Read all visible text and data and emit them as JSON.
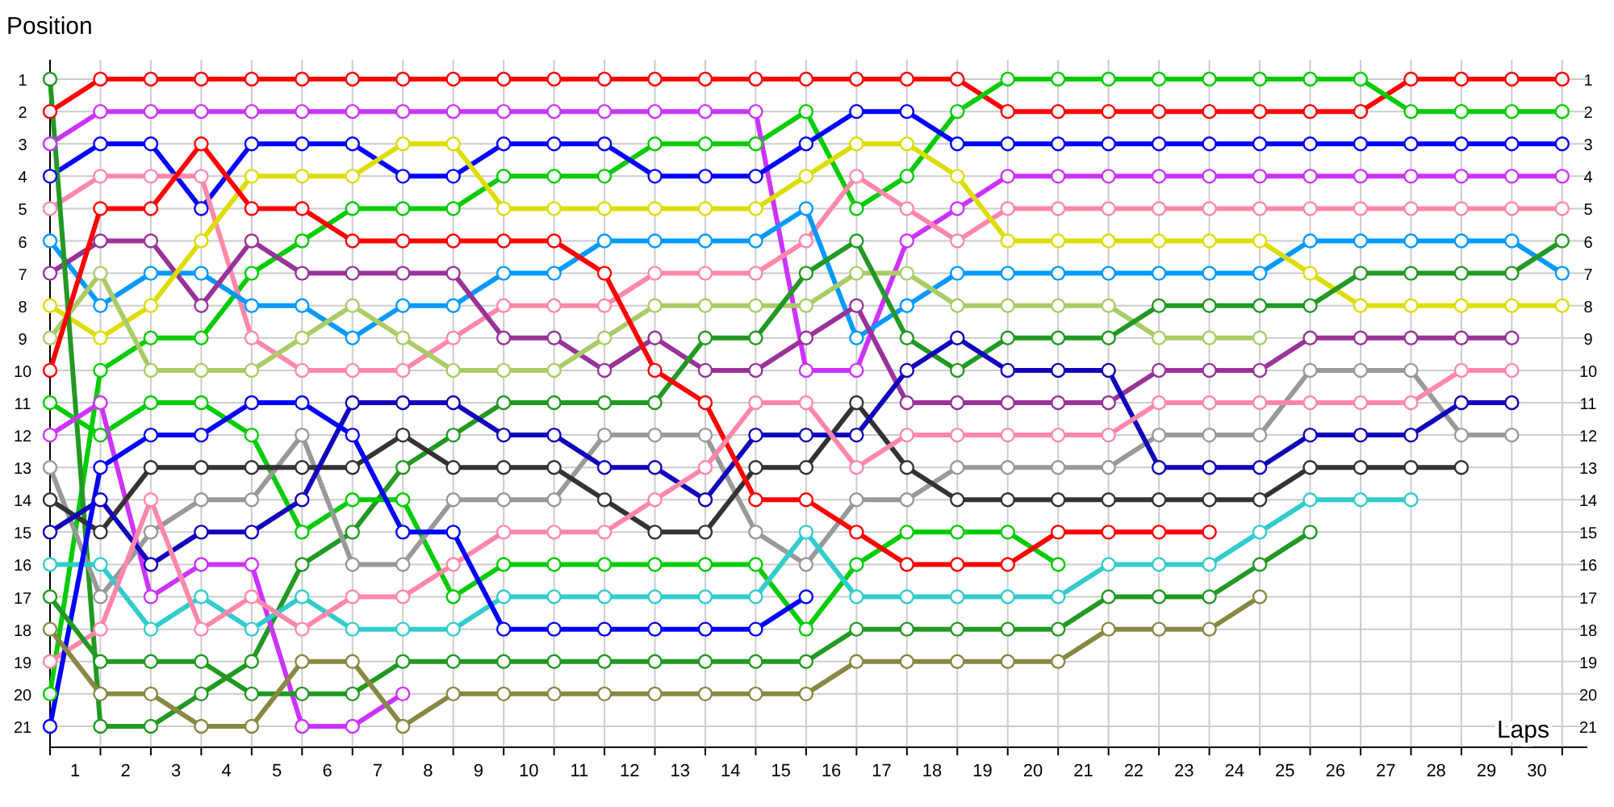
{
  "chart_data": {
    "type": "line",
    "xlabel": "Laps",
    "ylabel": "Position",
    "grid": true,
    "marker": "circle",
    "line_style": "solid",
    "x": [
      0,
      1,
      2,
      3,
      4,
      5,
      6,
      7,
      8,
      9,
      10,
      11,
      12,
      13,
      14,
      15,
      16,
      17,
      18,
      19,
      20,
      21,
      22,
      23,
      24,
      25,
      26,
      27,
      28,
      29,
      30
    ],
    "xlim": [
      0,
      30.5
    ],
    "ylim": [
      21.65,
      0.4
    ],
    "y2lim": [
      21.65,
      0.4
    ],
    "xticks": [
      {
        "value": 0,
        "label": null
      },
      {
        "value": 0.5,
        "label": "1"
      },
      {
        "value": 1,
        "label": null
      },
      {
        "value": 1.5,
        "label": "2"
      },
      {
        "value": 2,
        "label": null
      },
      {
        "value": 2.5,
        "label": "3"
      },
      {
        "value": 3,
        "label": null
      },
      {
        "value": 3.5,
        "label": "4"
      },
      {
        "value": 4,
        "label": null
      },
      {
        "value": 4.5,
        "label": "5"
      },
      {
        "value": 5,
        "label": null
      },
      {
        "value": 5.5,
        "label": "6"
      },
      {
        "value": 6,
        "label": null
      },
      {
        "value": 6.5,
        "label": "7"
      },
      {
        "value": 7,
        "label": null
      },
      {
        "value": 7.5,
        "label": "8"
      },
      {
        "value": 8,
        "label": null
      },
      {
        "value": 8.5,
        "label": "9"
      },
      {
        "value": 9,
        "label": null
      },
      {
        "value": 9.5,
        "label": "10"
      },
      {
        "value": 10,
        "label": null
      },
      {
        "value": 10.5,
        "label": "11"
      },
      {
        "value": 11,
        "label": null
      },
      {
        "value": 11.5,
        "label": "12"
      },
      {
        "value": 12,
        "label": null
      },
      {
        "value": 12.5,
        "label": "13"
      },
      {
        "value": 13,
        "label": null
      },
      {
        "value": 13.5,
        "label": "14"
      },
      {
        "value": 14,
        "label": null
      },
      {
        "value": 14.5,
        "label": "15"
      },
      {
        "value": 15,
        "label": null
      },
      {
        "value": 15.5,
        "label": "16"
      },
      {
        "value": 16,
        "label": null
      },
      {
        "value": 16.5,
        "label": "17"
      },
      {
        "value": 17,
        "label": null
      },
      {
        "value": 17.5,
        "label": "18"
      },
      {
        "value": 18,
        "label": null
      },
      {
        "value": 18.5,
        "label": "19"
      },
      {
        "value": 19,
        "label": null
      },
      {
        "value": 19.5,
        "label": "20"
      },
      {
        "value": 20,
        "label": null
      },
      {
        "value": 20.5,
        "label": "21"
      },
      {
        "value": 21,
        "label": null
      },
      {
        "value": 21.5,
        "label": "22"
      },
      {
        "value": 22,
        "label": null
      },
      {
        "value": 22.5,
        "label": "23"
      },
      {
        "value": 23,
        "label": null
      },
      {
        "value": 23.5,
        "label": "24"
      },
      {
        "value": 24,
        "label": null
      },
      {
        "value": 24.5,
        "label": "25"
      },
      {
        "value": 25,
        "label": null
      },
      {
        "value": 25.5,
        "label": "26"
      },
      {
        "value": 26,
        "label": null
      },
      {
        "value": 26.5,
        "label": "27"
      },
      {
        "value": 27,
        "label": null
      },
      {
        "value": 27.5,
        "label": "28"
      },
      {
        "value": 28,
        "label": null
      },
      {
        "value": 28.5,
        "label": "29"
      },
      {
        "value": 29,
        "label": null
      },
      {
        "value": 29.5,
        "label": "30"
      },
      {
        "value": 30,
        "label": null
      }
    ],
    "yticks": [
      1,
      2,
      3,
      4,
      5,
      6,
      7,
      8,
      9,
      10,
      11,
      12,
      13,
      14,
      15,
      16,
      17,
      18,
      19,
      20,
      21
    ],
    "y2ticks": [
      1,
      2,
      3,
      4,
      5,
      6,
      7,
      8,
      9,
      10,
      11,
      12,
      13,
      14,
      15,
      16,
      17,
      18,
      19,
      20,
      21
    ],
    "series": [
      {
        "color": "#ff0000",
        "values": [
          2,
          1,
          1,
          1,
          1,
          1,
          1,
          1,
          1,
          1,
          1,
          1,
          1,
          1,
          1,
          1,
          1,
          1,
          1,
          2,
          2,
          2,
          2,
          2,
          2,
          2,
          2,
          1,
          1,
          1,
          1
        ]
      },
      {
        "color": "#00cc00",
        "values": [
          20,
          10,
          9,
          9,
          7,
          6,
          5,
          5,
          5,
          4,
          4,
          4,
          3,
          3,
          3,
          2,
          5,
          4,
          2,
          1,
          1,
          1,
          1,
          1,
          1,
          1,
          1,
          2,
          2,
          2,
          2
        ]
      },
      {
        "color": "#cc33ff",
        "values": [
          3,
          2,
          2,
          2,
          2,
          2,
          2,
          2,
          2,
          2,
          2,
          2,
          2,
          2,
          2,
          10,
          10,
          6,
          5,
          4,
          4,
          4,
          4,
          4,
          4,
          4,
          4,
          4,
          4,
          4,
          4
        ]
      },
      {
        "color": "#0000ff",
        "values": [
          4,
          3,
          3,
          5,
          3,
          3,
          3,
          4,
          4,
          3,
          3,
          3,
          4,
          4,
          4,
          3,
          2,
          2,
          3,
          3,
          3,
          3,
          3,
          3,
          3,
          3,
          3,
          3,
          3,
          3,
          3
        ]
      },
      {
        "color": "#ff88aa",
        "values": [
          5,
          4,
          4,
          4,
          9,
          10,
          10,
          10,
          9,
          8,
          8,
          8,
          7,
          7,
          7,
          6,
          4,
          5,
          6,
          5,
          5,
          5,
          5,
          5,
          5,
          5,
          5,
          5,
          5,
          5,
          5
        ]
      },
      {
        "color": "#0099ff",
        "values": [
          6,
          8,
          7,
          7,
          8,
          8,
          9,
          8,
          8,
          7,
          7,
          6,
          6,
          6,
          6,
          5,
          9,
          8,
          7,
          7,
          7,
          7,
          7,
          7,
          7,
          6,
          6,
          6,
          6,
          6,
          7
        ]
      },
      {
        "color": "#993399",
        "values": [
          7,
          6,
          6,
          8,
          6,
          7,
          7,
          7,
          7,
          9,
          9,
          10,
          9,
          10,
          10,
          9,
          8,
          11,
          11,
          11,
          11,
          11,
          10,
          10,
          10,
          9,
          9,
          9,
          9,
          9,
          null
        ]
      },
      {
        "color": "#dddd00",
        "values": [
          8,
          9,
          8,
          6,
          4,
          4,
          4,
          3,
          3,
          5,
          5,
          5,
          5,
          5,
          5,
          4,
          3,
          3,
          4,
          6,
          6,
          6,
          6,
          6,
          6,
          7,
          8,
          8,
          8,
          8,
          8
        ]
      },
      {
        "color": "#aacc66",
        "values": [
          9,
          7,
          10,
          10,
          10,
          9,
          8,
          9,
          10,
          10,
          10,
          9,
          8,
          8,
          8,
          8,
          7,
          7,
          8,
          8,
          8,
          8,
          9,
          9,
          9,
          null,
          null,
          null,
          null,
          null,
          null
        ]
      },
      {
        "color": "#229922",
        "values": [
          1,
          21,
          21,
          20,
          19,
          16,
          15,
          13,
          12,
          11,
          11,
          11,
          11,
          9,
          9,
          7,
          6,
          9,
          10,
          9,
          9,
          9,
          8,
          8,
          8,
          8,
          7,
          7,
          7,
          7,
          6
        ]
      },
      {
        "color": "#00cc00",
        "values": [
          11,
          12,
          11,
          11,
          12,
          15,
          14,
          14,
          17,
          16,
          16,
          16,
          16,
          16,
          16,
          18,
          16,
          15,
          15,
          15,
          16,
          null,
          null,
          null,
          null,
          null,
          null,
          null,
          null,
          null,
          null
        ]
      },
      {
        "color": "#cc33ff",
        "values": [
          12,
          11,
          17,
          16,
          16,
          21,
          21,
          20,
          null,
          null,
          null,
          null,
          null,
          null,
          null,
          null,
          null,
          null,
          null,
          null,
          null,
          null,
          null,
          null,
          null,
          null,
          null,
          null,
          null,
          null,
          null
        ]
      },
      {
        "color": "#999999",
        "values": [
          13,
          17,
          15,
          14,
          14,
          12,
          16,
          16,
          14,
          14,
          14,
          12,
          12,
          12,
          15,
          16,
          14,
          14,
          13,
          13,
          13,
          13,
          12,
          12,
          12,
          10,
          10,
          10,
          12,
          12,
          null
        ]
      },
      {
        "color": "#333333",
        "values": [
          14,
          15,
          13,
          13,
          13,
          13,
          13,
          12,
          13,
          13,
          13,
          14,
          15,
          15,
          13,
          13,
          11,
          13,
          14,
          14,
          14,
          14,
          14,
          14,
          14,
          13,
          13,
          13,
          13,
          null,
          null
        ]
      },
      {
        "color": "#1100bb",
        "values": [
          15,
          14,
          16,
          15,
          15,
          14,
          11,
          11,
          11,
          12,
          12,
          13,
          13,
          14,
          12,
          12,
          12,
          10,
          9,
          10,
          10,
          10,
          13,
          13,
          13,
          12,
          12,
          12,
          11,
          11,
          null
        ]
      },
      {
        "color": "#33cccc",
        "values": [
          16,
          16,
          18,
          17,
          18,
          17,
          18,
          18,
          18,
          17,
          17,
          17,
          17,
          17,
          17,
          15,
          17,
          17,
          17,
          17,
          17,
          16,
          16,
          16,
          15,
          14,
          14,
          14,
          null,
          null,
          null
        ]
      },
      {
        "color": "#ff0000",
        "values": [
          10,
          5,
          5,
          3,
          5,
          5,
          6,
          6,
          6,
          6,
          6,
          7,
          10,
          11,
          14,
          14,
          15,
          16,
          16,
          16,
          15,
          15,
          15,
          15,
          null,
          null,
          null,
          null,
          null,
          null,
          null
        ]
      },
      {
        "color": "#ff88aa",
        "values": [
          19,
          18,
          14,
          18,
          17,
          18,
          17,
          17,
          16,
          15,
          15,
          15,
          14,
          13,
          11,
          11,
          13,
          12,
          12,
          12,
          12,
          12,
          11,
          11,
          11,
          11,
          11,
          11,
          10,
          10,
          null
        ]
      },
      {
        "color": "#0000ff",
        "values": [
          21,
          13,
          12,
          12,
          11,
          11,
          12,
          15,
          15,
          18,
          18,
          18,
          18,
          18,
          18,
          17,
          null,
          null,
          null,
          null,
          null,
          null,
          null,
          null,
          null,
          null,
          null,
          null,
          null,
          null,
          null
        ]
      },
      {
        "color": "#229922",
        "values": [
          17,
          19,
          19,
          19,
          20,
          20,
          20,
          19,
          19,
          19,
          19,
          19,
          19,
          19,
          19,
          19,
          18,
          18,
          18,
          18,
          18,
          17,
          17,
          17,
          16,
          15,
          null,
          null,
          null,
          null,
          null
        ]
      },
      {
        "color": "#888844",
        "values": [
          18,
          20,
          20,
          21,
          21,
          19,
          19,
          21,
          20,
          20,
          20,
          20,
          20,
          20,
          20,
          20,
          19,
          19,
          19,
          19,
          19,
          18,
          18,
          18,
          17,
          null,
          null,
          null,
          null,
          null,
          null
        ]
      }
    ]
  }
}
